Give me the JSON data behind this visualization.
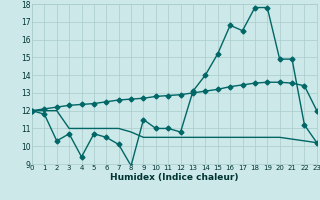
{
  "xlabel": "Humidex (Indice chaleur)",
  "background_color": "#cce8e8",
  "grid_color": "#aacccc",
  "line_color": "#006666",
  "x_min": 0,
  "x_max": 23,
  "y_min": 9,
  "y_max": 18,
  "series1_x": [
    0,
    1,
    2,
    3,
    4,
    5,
    6,
    7,
    8,
    9,
    10,
    11,
    12,
    13,
    14,
    15,
    16,
    17,
    18,
    19,
    20,
    21,
    22,
    23
  ],
  "series1_y": [
    12.0,
    11.8,
    10.3,
    10.7,
    9.4,
    10.7,
    10.5,
    10.1,
    8.9,
    11.5,
    11.0,
    11.0,
    10.8,
    13.1,
    14.0,
    15.2,
    16.8,
    16.5,
    17.8,
    17.8,
    14.9,
    14.9,
    11.2,
    10.2
  ],
  "series2_x": [
    0,
    1,
    2,
    3,
    4,
    5,
    6,
    7,
    8,
    9,
    10,
    11,
    12,
    13,
    14,
    15,
    16,
    17,
    18,
    19,
    20,
    21,
    22,
    23
  ],
  "series2_y": [
    12.0,
    12.0,
    12.0,
    11.0,
    11.0,
    11.0,
    11.0,
    11.0,
    10.8,
    10.5,
    10.5,
    10.5,
    10.5,
    10.5,
    10.5,
    10.5,
    10.5,
    10.5,
    10.5,
    10.5,
    10.5,
    10.4,
    10.3,
    10.2
  ],
  "series3_x": [
    0,
    1,
    2,
    3,
    4,
    5,
    6,
    7,
    8,
    9,
    10,
    11,
    12,
    13,
    14,
    15,
    16,
    17,
    18,
    19,
    20,
    21,
    22,
    23
  ],
  "series3_y": [
    12.0,
    12.1,
    12.2,
    12.3,
    12.35,
    12.4,
    12.5,
    12.6,
    12.65,
    12.7,
    12.8,
    12.85,
    12.9,
    13.0,
    13.1,
    13.2,
    13.35,
    13.45,
    13.55,
    13.6,
    13.6,
    13.55,
    13.4,
    12.0
  ],
  "yticks": [
    9,
    10,
    11,
    12,
    13,
    14,
    15,
    16,
    17,
    18
  ],
  "xticks": [
    0,
    1,
    2,
    3,
    4,
    5,
    6,
    7,
    8,
    9,
    10,
    11,
    12,
    13,
    14,
    15,
    16,
    17,
    18,
    19,
    20,
    21,
    22,
    23
  ],
  "marker": "D",
  "markersize": 2.5,
  "linewidth": 1.0
}
